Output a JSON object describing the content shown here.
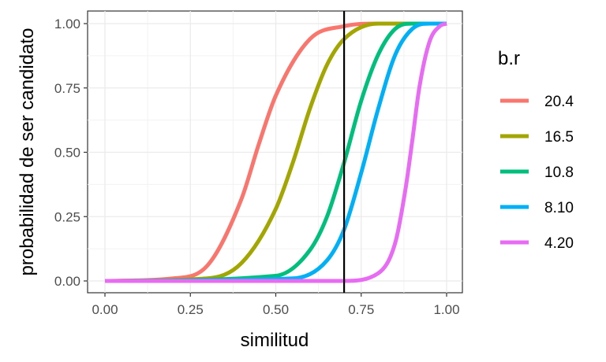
{
  "chart_data": {
    "type": "line",
    "xlabel": "similitud",
    "ylabel": "probabilidad de ser candidato",
    "xlim": [
      0,
      1
    ],
    "ylim": [
      0,
      1
    ],
    "x_ticks": [
      "0.00",
      "0.25",
      "0.50",
      "0.75",
      "1.00"
    ],
    "y_ticks": [
      "0.00",
      "0.25",
      "0.50",
      "0.75",
      "1.00"
    ],
    "grid": true,
    "legend": {
      "title": "b.r",
      "position": "right"
    },
    "vertical_line": {
      "x": 0.7,
      "color": "#000000"
    },
    "series": [
      {
        "name": "20.4",
        "color": "#F8766D",
        "values": [
          [
            0.0,
            0.0
          ],
          [
            0.2,
            0.01
          ],
          [
            0.3,
            0.06
          ],
          [
            0.4,
            0.32
          ],
          [
            0.45,
            0.53
          ],
          [
            0.5,
            0.72
          ],
          [
            0.6,
            0.94
          ],
          [
            0.7,
            0.99
          ],
          [
            0.8,
            1.0
          ],
          [
            1.0,
            1.0
          ]
        ]
      },
      {
        "name": "16.5",
        "color": "#A3A500",
        "values": [
          [
            0.0,
            0.0
          ],
          [
            0.3,
            0.01
          ],
          [
            0.4,
            0.07
          ],
          [
            0.5,
            0.28
          ],
          [
            0.55,
            0.46
          ],
          [
            0.6,
            0.67
          ],
          [
            0.65,
            0.84
          ],
          [
            0.7,
            0.94
          ],
          [
            0.8,
            1.0
          ],
          [
            1.0,
            1.0
          ]
        ]
      },
      {
        "name": "10.8",
        "color": "#00BF7D",
        "values": [
          [
            0.0,
            0.0
          ],
          [
            0.5,
            0.02
          ],
          [
            0.6,
            0.12
          ],
          [
            0.65,
            0.25
          ],
          [
            0.7,
            0.46
          ],
          [
            0.75,
            0.7
          ],
          [
            0.8,
            0.88
          ],
          [
            0.85,
            0.98
          ],
          [
            0.9,
            1.0
          ],
          [
            1.0,
            1.0
          ]
        ]
      },
      {
        "name": "8.10",
        "color": "#00B0F6",
        "values": [
          [
            0.0,
            0.0
          ],
          [
            0.55,
            0.01
          ],
          [
            0.65,
            0.08
          ],
          [
            0.7,
            0.2
          ],
          [
            0.75,
            0.42
          ],
          [
            0.8,
            0.67
          ],
          [
            0.85,
            0.88
          ],
          [
            0.9,
            0.98
          ],
          [
            0.95,
            1.0
          ],
          [
            1.0,
            1.0
          ]
        ]
      },
      {
        "name": "4.20",
        "color": "#E76BF3",
        "values": [
          [
            0.0,
            0.0
          ],
          [
            0.7,
            0.0
          ],
          [
            0.8,
            0.03
          ],
          [
            0.85,
            0.15
          ],
          [
            0.88,
            0.36
          ],
          [
            0.9,
            0.55
          ],
          [
            0.92,
            0.75
          ],
          [
            0.95,
            0.93
          ],
          [
            0.98,
            0.99
          ],
          [
            1.0,
            1.0
          ]
        ]
      }
    ]
  }
}
